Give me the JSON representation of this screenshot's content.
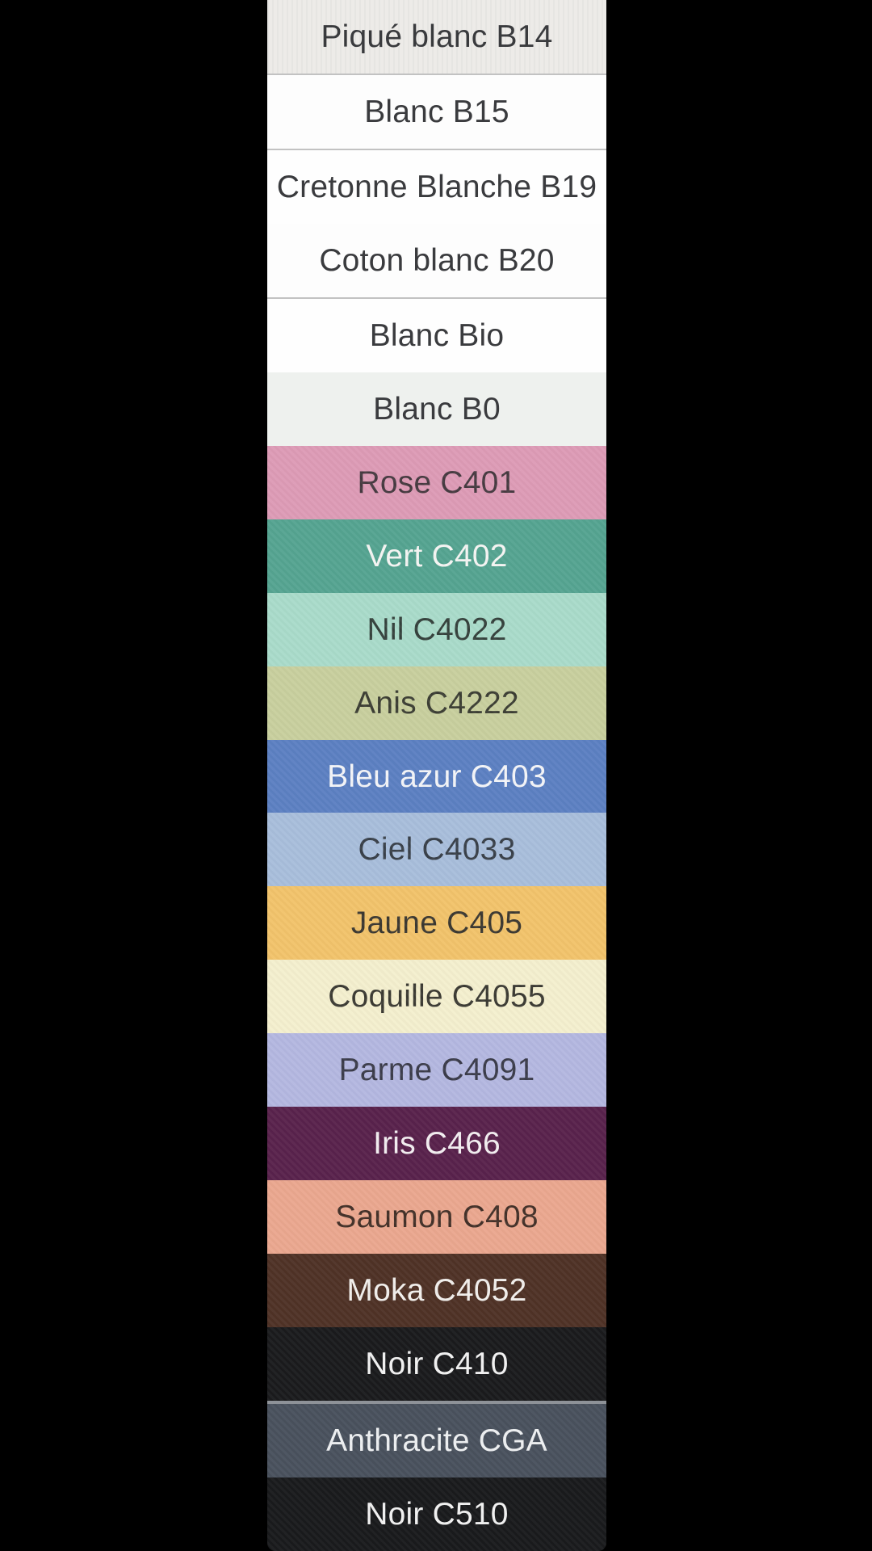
{
  "page": {
    "background_color": "#000000"
  },
  "swatch_list": {
    "divider_color": "#c2c2c2",
    "highlight_divider_color": "#8e9298",
    "dark_text_color": "#3a3b3e",
    "light_text_color": "#f5f5f3",
    "rows": [
      {
        "label": "Piqué blanc B14",
        "bg": "#edebe8",
        "fg": "#3a3b3e",
        "texture": "stripes",
        "divider_bottom": true
      },
      {
        "label": "Blanc B15",
        "bg": "#fdfdfd",
        "fg": "#3a3b3e",
        "texture": "none",
        "divider_bottom": true
      },
      {
        "label": "Cretonne Blanche B19",
        "bg": "#fefefe",
        "fg": "#3a3b3e",
        "texture": "none",
        "divider_bottom": false
      },
      {
        "label": "Coton blanc B20",
        "bg": "#fdfdfd",
        "fg": "#3a3b3e",
        "texture": "none",
        "divider_bottom": true
      },
      {
        "label": "Blanc Bio",
        "bg": "#fefefe",
        "fg": "#3a3b3e",
        "texture": "none",
        "divider_bottom": false
      },
      {
        "label": "Blanc B0",
        "bg": "#eef1ee",
        "fg": "#3a3b3e",
        "texture": "none",
        "divider_bottom": false
      },
      {
        "label": "Rose C401",
        "bg": "#dd9bb6",
        "fg": "#463a40",
        "texture": "weave",
        "divider_bottom": false
      },
      {
        "label": "Vert C402",
        "bg": "#55a491",
        "fg": "#f5f5f3",
        "texture": "weave",
        "divider_bottom": false
      },
      {
        "label": "Nil C4022",
        "bg": "#a9dbca",
        "fg": "#35413c",
        "texture": "weave",
        "divider_bottom": false
      },
      {
        "label": "Anis C4222",
        "bg": "#c8cf9e",
        "fg": "#3c3e34",
        "texture": "weave",
        "divider_bottom": false
      },
      {
        "label": "Bleu azur C403",
        "bg": "#5c80c2",
        "fg": "#f4f5f8",
        "texture": "weave",
        "divider_bottom": false
      },
      {
        "label": "Ciel C4033",
        "bg": "#a8bedb",
        "fg": "#394049",
        "texture": "weave",
        "divider_bottom": false
      },
      {
        "label": "Jaune C405",
        "bg": "#f2c36b",
        "fg": "#3b3831",
        "texture": "weave",
        "divider_bottom": false
      },
      {
        "label": "Coquille C4055",
        "bg": "#f4efce",
        "fg": "#3b3a33",
        "texture": "weave",
        "divider_bottom": false
      },
      {
        "label": "Parme C4091",
        "bg": "#b4b7e0",
        "fg": "#3b3c4a",
        "texture": "weave",
        "divider_bottom": false
      },
      {
        "label": "Iris C466",
        "bg": "#59224c",
        "fg": "#f3eef1",
        "texture": "weave",
        "divider_bottom": false
      },
      {
        "label": "Saumon C408",
        "bg": "#eaa78f",
        "fg": "#433129",
        "texture": "weave",
        "divider_bottom": false
      },
      {
        "label": "Moka C4052",
        "bg": "#4f3226",
        "fg": "#f2efec",
        "texture": "weave",
        "divider_bottom": false
      },
      {
        "label": "Noir C410",
        "bg": "#1a1b1d",
        "fg": "#f2f2f2",
        "texture": "weave",
        "divider_bottom": false
      },
      {
        "label": "Anthracite CGA",
        "bg": "#49515d",
        "fg": "#eef0f2",
        "texture": "weave",
        "divider_top": true
      },
      {
        "label": "Noir C510",
        "bg": "#191a1c",
        "fg": "#f2f2f2",
        "texture": "weave",
        "divider_bottom": false
      }
    ]
  }
}
